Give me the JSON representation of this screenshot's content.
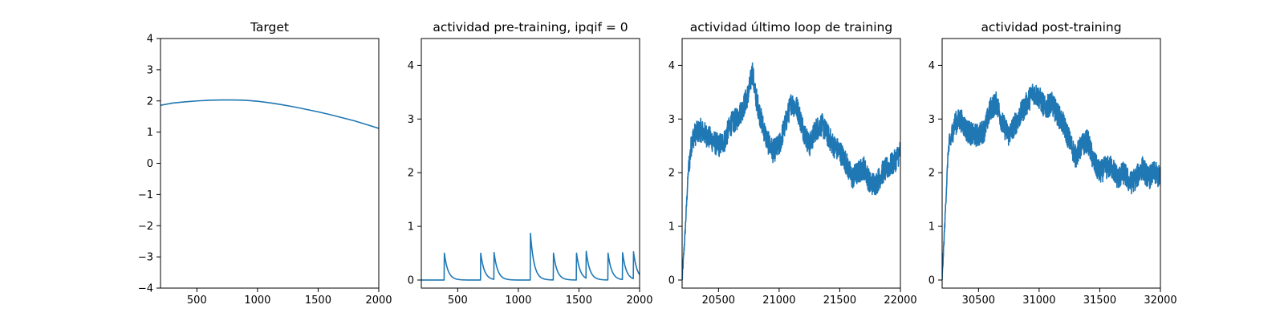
{
  "figure": {
    "background": "#ffffff",
    "line_color": "#1f77b4"
  },
  "chart_data": [
    {
      "type": "line",
      "title": "Target",
      "xlabel": "",
      "ylabel": "",
      "xlim": [
        200,
        2000
      ],
      "ylim": [
        -4,
        4
      ],
      "xticks": [
        500,
        1000,
        1500,
        2000
      ],
      "yticks": [
        -4,
        -3,
        -2,
        -1,
        0,
        1,
        2,
        3,
        4
      ],
      "grid": false,
      "series": [
        {
          "kind": "curve",
          "x": [
            200,
            300,
            400,
            500,
            600,
            700,
            750,
            800,
            900,
            1000,
            1100,
            1200,
            1300,
            1400,
            1500,
            1600,
            1700,
            1800,
            1900,
            2000
          ],
          "y": [
            1.86,
            1.93,
            1.97,
            2.0,
            2.02,
            2.03,
            2.03,
            2.03,
            2.02,
            1.99,
            1.94,
            1.88,
            1.81,
            1.73,
            1.65,
            1.56,
            1.46,
            1.36,
            1.24,
            1.12
          ]
        }
      ]
    },
    {
      "type": "line",
      "title": "actividad pre-training, ipqif = 0",
      "xlabel": "",
      "ylabel": "",
      "xlim": [
        200,
        2000
      ],
      "ylim": [
        -0.15,
        4.5
      ],
      "xticks": [
        500,
        1000,
        1500,
        2000
      ],
      "yticks": [
        0,
        1,
        2,
        3,
        4
      ],
      "grid": false,
      "series": [
        {
          "kind": "spikes",
          "baseline": 0,
          "decay": 30,
          "spikes": [
            [
              390,
              0.5
            ],
            [
              690,
              0.5
            ],
            [
              800,
              0.5
            ],
            [
              1100,
              0.87
            ],
            [
              1290,
              0.5
            ],
            [
              1480,
              0.5
            ],
            [
              1560,
              0.5
            ],
            [
              1740,
              0.5
            ],
            [
              1860,
              0.5
            ],
            [
              1950,
              0.5
            ]
          ]
        }
      ]
    },
    {
      "type": "line",
      "title": "actividad último loop de training",
      "xlabel": "",
      "ylabel": "",
      "xlim": [
        20200,
        22000
      ],
      "ylim": [
        -0.15,
        4.5
      ],
      "xticks": [
        20500,
        21000,
        21500,
        22000
      ],
      "yticks": [
        0,
        1,
        2,
        3,
        4
      ],
      "grid": false,
      "series": [
        {
          "kind": "noisy",
          "noise": 0.22,
          "x": [
            20200,
            20225,
            20250,
            20280,
            20300,
            20350,
            20400,
            20450,
            20500,
            20550,
            20600,
            20650,
            20700,
            20750,
            20780,
            20800,
            20850,
            20900,
            20950,
            21000,
            21050,
            21100,
            21150,
            21200,
            21250,
            21300,
            21350,
            21400,
            21450,
            21500,
            21550,
            21600,
            21650,
            21700,
            21750,
            21800,
            21850,
            21900,
            21950,
            22000
          ],
          "y": [
            0.0,
            0.9,
            2.0,
            2.6,
            2.7,
            2.8,
            2.7,
            2.6,
            2.5,
            2.6,
            2.9,
            3.0,
            3.2,
            3.5,
            3.9,
            3.5,
            3.0,
            2.6,
            2.4,
            2.5,
            2.9,
            3.3,
            3.2,
            2.8,
            2.5,
            2.8,
            2.9,
            2.7,
            2.5,
            2.4,
            2.2,
            1.9,
            2.0,
            2.1,
            1.8,
            1.8,
            2.0,
            2.1,
            2.2,
            2.4
          ]
        }
      ]
    },
    {
      "type": "line",
      "title": "actividad post-training",
      "xlabel": "",
      "ylabel": "",
      "xlim": [
        30200,
        32000
      ],
      "ylim": [
        -0.15,
        4.5
      ],
      "xticks": [
        30500,
        31000,
        31500,
        32000
      ],
      "yticks": [
        0,
        1,
        2,
        3,
        4
      ],
      "grid": false,
      "series": [
        {
          "kind": "noisy",
          "noise": 0.22,
          "x": [
            30200,
            30225,
            30250,
            30280,
            30300,
            30350,
            30400,
            30450,
            30500,
            30550,
            30600,
            30650,
            30700,
            30750,
            30800,
            30850,
            30900,
            30950,
            31000,
            31050,
            31100,
            31150,
            31200,
            31250,
            31300,
            31350,
            31400,
            31450,
            31500,
            31550,
            31600,
            31650,
            31700,
            31750,
            31800,
            31850,
            31900,
            31950,
            32000
          ],
          "y": [
            0.0,
            1.2,
            2.4,
            2.7,
            2.9,
            3.0,
            2.8,
            2.7,
            2.7,
            2.8,
            3.2,
            3.3,
            2.9,
            2.7,
            2.9,
            3.1,
            3.3,
            3.5,
            3.4,
            3.2,
            3.3,
            3.1,
            2.9,
            2.6,
            2.3,
            2.5,
            2.6,
            2.2,
            2.0,
            2.1,
            2.1,
            1.9,
            2.0,
            1.8,
            1.9,
            2.1,
            1.9,
            2.0,
            1.9
          ]
        }
      ]
    }
  ]
}
